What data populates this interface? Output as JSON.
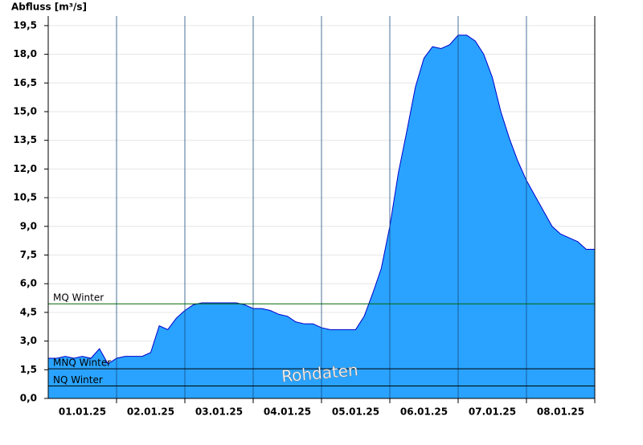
{
  "chart_data": {
    "type": "area",
    "y_axis_label": "Abfluss [m³/s]",
    "annotation": "Rohdaten",
    "categories": [
      null,
      null,
      null,
      null,
      "01.01.25",
      null,
      null,
      null,
      null,
      null,
      null,
      null,
      "02.01.25",
      null,
      null,
      null,
      null,
      null,
      null,
      null,
      "03.01.25",
      null,
      null,
      null,
      null,
      null,
      null,
      null,
      "04.01.25",
      null,
      null,
      null,
      null,
      null,
      null,
      null,
      "05.01.25",
      null,
      null,
      null,
      null,
      null,
      null,
      null,
      "06.01.25",
      null,
      null,
      null,
      null,
      null,
      null,
      null,
      "07.01.25",
      null,
      null,
      null,
      null,
      null,
      null,
      null,
      "08.01.25",
      null,
      null,
      null,
      null
    ],
    "series": [
      {
        "color": "#29a3ff",
        "line_color": "#0000cc",
        "values": [
          2.1,
          2.1,
          2.2,
          2.1,
          2.2,
          2.1,
          2.6,
          1.8,
          2.1,
          2.2,
          2.2,
          2.2,
          2.4,
          3.8,
          3.6,
          4.2,
          4.6,
          4.9,
          5.0,
          5.0,
          5.0,
          5.0,
          5.0,
          4.9,
          4.7,
          4.7,
          4.6,
          4.4,
          4.3,
          4.0,
          3.9,
          3.9,
          3.7,
          3.6,
          3.6,
          3.6,
          3.6,
          4.3,
          5.5,
          6.8,
          9.0,
          11.8,
          14.0,
          16.3,
          17.8,
          18.4,
          18.3,
          18.5,
          19.0,
          19.0,
          18.7,
          18.0,
          16.8,
          15.0,
          13.6,
          12.4,
          11.4,
          10.6,
          9.8,
          9.0,
          8.6,
          8.4,
          8.2,
          7.8,
          7.8
        ]
      }
    ],
    "reference_lines": [
      {
        "label": "MQ Winter",
        "value": 4.95,
        "color": "#006600"
      },
      {
        "label": "MNQ Winter",
        "value": 1.55,
        "color": "#000000"
      },
      {
        "label": "NQ Winter",
        "value": 0.65,
        "color": "#000000"
      }
    ],
    "ylim": [
      0,
      20
    ],
    "yticks": [
      {
        "value": 0,
        "label": "0,0"
      },
      {
        "value": 1.5,
        "label": "1,5"
      },
      {
        "value": 3,
        "label": "3,0"
      },
      {
        "value": 4.5,
        "label": "4,5"
      },
      {
        "value": 6,
        "label": "6,0"
      },
      {
        "value": 7.5,
        "label": "7,5"
      },
      {
        "value": 9,
        "label": "9,0"
      },
      {
        "value": 10.5,
        "label": "10,5"
      },
      {
        "value": 12,
        "label": "12,0"
      },
      {
        "value": 13.5,
        "label": "13,5"
      },
      {
        "value": 15,
        "label": "15,0"
      },
      {
        "value": 16.5,
        "label": "16,5"
      },
      {
        "value": 18,
        "label": "18,0"
      },
      {
        "value": 19.5,
        "label": "19,5"
      }
    ],
    "grid": true
  }
}
